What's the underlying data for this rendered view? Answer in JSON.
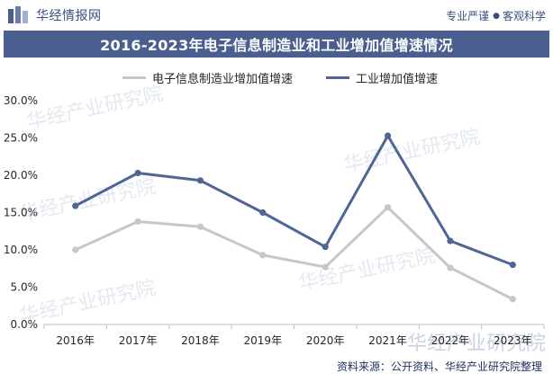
{
  "header": {
    "brand_name": "华经情报网",
    "slogan_left": "专业严谨",
    "slogan_right": "客观科学"
  },
  "watermark": {
    "text": "华经产业研究院",
    "url": "www.huaon.com"
  },
  "footer": {
    "source": "资料来源：公开资料、华经产业研究院整理"
  },
  "colors": {
    "title_bar": "#4a5f8f",
    "electronics": "#c7c7c7",
    "industry": "#4e6595"
  },
  "chart_data": {
    "type": "line",
    "title": "2016-2023年电子信息制造业和工业增加值增速情况",
    "categories": [
      "2016年",
      "2017年",
      "2018年",
      "2019年",
      "2020年",
      "2021年",
      "2022年",
      "2023年"
    ],
    "series": [
      {
        "name": "电子信息制造业增加值增速",
        "values": [
          10.0,
          13.8,
          13.1,
          9.3,
          7.7,
          15.7,
          7.6,
          3.4
        ],
        "color": "#c7c7c7"
      },
      {
        "name": "工业增加值增速",
        "values": [
          15.9,
          20.3,
          19.3,
          15.0,
          10.4,
          25.3,
          11.2,
          8.0
        ],
        "color": "#4e6595"
      }
    ],
    "ylim": [
      0,
      30
    ],
    "yticks": [
      "0.0%",
      "5.0%",
      "10.0%",
      "15.0%",
      "20.0%",
      "25.0%",
      "30.0%"
    ],
    "ytick_values": [
      0,
      5,
      10,
      15,
      20,
      25,
      30
    ],
    "grid": false,
    "legend_position": "top-center",
    "xlabel": "",
    "ylabel": ""
  }
}
